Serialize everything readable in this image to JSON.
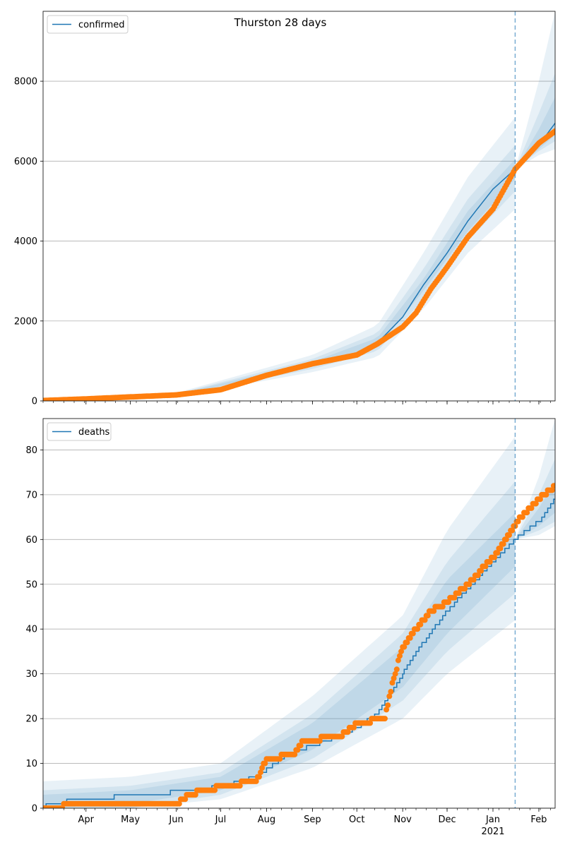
{
  "figure": {
    "title": "Thurston 28 days"
  },
  "chart_data": [
    {
      "type": "line",
      "legend": {
        "entries": [
          "confirmed"
        ],
        "placement": "top-left"
      },
      "x_range": [
        "2020-03-03",
        "2021-02-12"
      ],
      "y_range": [
        0,
        9750
      ],
      "yticks": [
        0,
        2000,
        4000,
        6000,
        8000
      ],
      "grid": "horizontal",
      "forecast_start": "2021-01-16",
      "series": [
        {
          "name": "confirmed",
          "kind": "model-line",
          "color": "#1f77b4",
          "points": [
            [
              "2020-03-03",
              0
            ],
            [
              "2020-04-01",
              40
            ],
            [
              "2020-05-01",
              90
            ],
            [
              "2020-06-01",
              150
            ],
            [
              "2020-06-20",
              220
            ],
            [
              "2020-07-01",
              270
            ],
            [
              "2020-07-15",
              400
            ],
            [
              "2020-08-01",
              620
            ],
            [
              "2020-08-15",
              780
            ],
            [
              "2020-09-01",
              920
            ],
            [
              "2020-09-15",
              1020
            ],
            [
              "2020-10-01",
              1180
            ],
            [
              "2020-10-15",
              1450
            ],
            [
              "2020-11-01",
              2100
            ],
            [
              "2020-11-15",
              2900
            ],
            [
              "2020-12-01",
              3700
            ],
            [
              "2020-12-15",
              4500
            ],
            [
              "2021-01-01",
              5300
            ],
            [
              "2021-01-16",
              5800
            ],
            [
              "2021-02-01",
              6400
            ],
            [
              "2021-02-12",
              6950
            ]
          ]
        },
        {
          "name": "observed",
          "kind": "points",
          "color": "#ff7f0e",
          "points": [
            [
              "2020-03-03",
              10
            ],
            [
              "2020-04-01",
              50
            ],
            [
              "2020-05-01",
              100
            ],
            [
              "2020-06-01",
              150
            ],
            [
              "2020-07-01",
              280
            ],
            [
              "2020-08-01",
              640
            ],
            [
              "2020-09-01",
              930
            ],
            [
              "2020-10-01",
              1150
            ],
            [
              "2020-10-15",
              1430
            ],
            [
              "2020-11-01",
              1850
            ],
            [
              "2020-11-10",
              2200
            ],
            [
              "2020-11-20",
              2800
            ],
            [
              "2020-12-01",
              3350
            ],
            [
              "2020-12-15",
              4100
            ],
            [
              "2021-01-01",
              4800
            ],
            [
              "2021-01-16",
              5800
            ],
            [
              "2021-02-01",
              6450
            ],
            [
              "2021-02-12",
              6750
            ]
          ]
        }
      ],
      "bands": [
        {
          "opacity": 0.1,
          "upper": [
            [
              "2020-03-03",
              0
            ],
            [
              "2020-06-01",
              200
            ],
            [
              "2020-09-01",
              1150
            ],
            [
              "2020-10-15",
              1900
            ],
            [
              "2020-11-15",
              3700
            ],
            [
              "2020-12-15",
              5600
            ],
            [
              "2021-01-16",
              7100
            ]
          ],
          "lower": [
            [
              "2020-03-03",
              0
            ],
            [
              "2020-06-01",
              110
            ],
            [
              "2020-09-01",
              720
            ],
            [
              "2020-10-15",
              1100
            ],
            [
              "2020-11-15",
              2300
            ],
            [
              "2020-12-15",
              3700
            ],
            [
              "2021-01-16",
              4800
            ]
          ]
        },
        {
          "opacity": 0.1,
          "upper": [
            [
              "2020-03-03",
              0
            ],
            [
              "2020-06-01",
              180
            ],
            [
              "2020-09-01",
              1050
            ],
            [
              "2020-10-15",
              1700
            ],
            [
              "2020-11-15",
              3300
            ],
            [
              "2020-12-15",
              5050
            ],
            [
              "2021-01-16",
              6400
            ]
          ],
          "lower": [
            [
              "2020-03-03",
              0
            ],
            [
              "2020-06-01",
              125
            ],
            [
              "2020-09-01",
              800
            ],
            [
              "2020-10-15",
              1250
            ],
            [
              "2020-11-15",
              2550
            ],
            [
              "2020-12-15",
              4000
            ],
            [
              "2021-01-16",
              5250
            ]
          ]
        },
        {
          "opacity": 0.1,
          "upper": [
            [
              "2020-03-03",
              0
            ],
            [
              "2020-06-01",
              165
            ],
            [
              "2020-09-01",
              980
            ],
            [
              "2020-10-15",
              1580
            ],
            [
              "2020-11-15",
              3050
            ],
            [
              "2020-12-15",
              4750
            ],
            [
              "2021-01-16",
              6050
            ]
          ],
          "lower": [
            [
              "2020-03-03",
              0
            ],
            [
              "2020-06-01",
              135
            ],
            [
              "2020-09-01",
              860
            ],
            [
              "2020-10-15",
              1330
            ],
            [
              "2020-11-15",
              2750
            ],
            [
              "2020-12-15",
              4250
            ],
            [
              "2021-01-16",
              5550
            ]
          ]
        },
        {
          "opacity": 0.1,
          "upper": [
            [
              "2021-01-16",
              5800
            ],
            [
              "2021-02-01",
              8000
            ],
            [
              "2021-02-12",
              9750
            ]
          ],
          "lower": [
            [
              "2021-01-16",
              5800
            ],
            [
              "2021-02-01",
              6150
            ],
            [
              "2021-02-12",
              6300
            ]
          ]
        },
        {
          "opacity": 0.1,
          "upper": [
            [
              "2021-01-16",
              5800
            ],
            [
              "2021-02-01",
              7200
            ],
            [
              "2021-02-12",
              8200
            ]
          ],
          "lower": [
            [
              "2021-01-16",
              5800
            ],
            [
              "2021-02-01",
              6250
            ],
            [
              "2021-02-12",
              6500
            ]
          ]
        },
        {
          "opacity": 0.1,
          "upper": [
            [
              "2021-01-16",
              5800
            ],
            [
              "2021-02-01",
              6800
            ],
            [
              "2021-02-12",
              7600
            ]
          ],
          "lower": [
            [
              "2021-01-16",
              5800
            ],
            [
              "2021-02-01",
              6300
            ],
            [
              "2021-02-12",
              6650
            ]
          ]
        }
      ]
    },
    {
      "type": "line",
      "legend": {
        "entries": [
          "deaths"
        ],
        "placement": "top-left"
      },
      "x_range": [
        "2020-03-03",
        "2021-02-12"
      ],
      "y_range": [
        0,
        87
      ],
      "yticks": [
        0,
        10,
        20,
        30,
        40,
        50,
        60,
        70,
        80
      ],
      "grid": "horizontal",
      "forecast_start": "2021-01-16",
      "series": [
        {
          "name": "deaths",
          "kind": "model-line",
          "color": "#1f77b4",
          "points": [
            [
              "2020-03-03",
              0
            ],
            [
              "2020-03-07",
              1
            ],
            [
              "2020-03-31",
              2
            ],
            [
              "2020-05-10",
              3
            ],
            [
              "2020-06-15",
              4
            ],
            [
              "2020-07-05",
              5
            ],
            [
              "2020-07-25",
              7
            ],
            [
              "2020-08-15",
              12
            ],
            [
              "2020-09-10",
              15
            ],
            [
              "2020-10-01",
              18
            ],
            [
              "2020-10-15",
              21
            ],
            [
              "2020-11-01",
              30
            ],
            [
              "2020-11-15",
              37
            ],
            [
              "2020-12-01",
              44
            ],
            [
              "2020-12-15",
              49
            ],
            [
              "2021-01-01",
              55
            ],
            [
              "2021-01-16",
              60
            ],
            [
              "2021-02-01",
              64
            ],
            [
              "2021-02-12",
              69
            ]
          ]
        },
        {
          "name": "observed",
          "kind": "points",
          "color": "#ff7f0e",
          "points": [
            [
              "2020-03-03",
              0
            ],
            [
              "2020-03-31",
              1
            ],
            [
              "2020-06-01",
              1
            ],
            [
              "2020-06-10",
              3
            ],
            [
              "2020-06-20",
              4
            ],
            [
              "2020-07-05",
              5
            ],
            [
              "2020-07-25",
              6
            ],
            [
              "2020-08-01",
              11
            ],
            [
              "2020-08-20",
              12
            ],
            [
              "2020-08-25",
              15
            ],
            [
              "2020-09-20",
              16
            ],
            [
              "2020-10-01",
              19
            ],
            [
              "2020-10-20",
              20
            ],
            [
              "2020-10-25",
              28
            ],
            [
              "2020-11-01",
              36
            ],
            [
              "2020-11-10",
              40
            ],
            [
              "2020-11-20",
              44
            ],
            [
              "2020-12-01",
              46
            ],
            [
              "2020-12-15",
              50
            ],
            [
              "2021-01-01",
              56
            ],
            [
              "2021-01-10",
              60
            ],
            [
              "2021-01-20",
              65
            ],
            [
              "2021-02-01",
              69
            ],
            [
              "2021-02-12",
              72
            ]
          ]
        }
      ],
      "bands": [
        {
          "opacity": 0.1,
          "upper": [
            [
              "2020-03-03",
              6
            ],
            [
              "2020-05-01",
              7
            ],
            [
              "2020-07-01",
              10
            ],
            [
              "2020-09-01",
              25
            ],
            [
              "2020-11-01",
              43
            ],
            [
              "2020-12-01",
              62
            ],
            [
              "2021-01-16",
              83
            ]
          ],
          "lower": [
            [
              "2020-03-03",
              0
            ],
            [
              "2020-05-01",
              0
            ],
            [
              "2020-07-01",
              2
            ],
            [
              "2020-09-01",
              9
            ],
            [
              "2020-11-01",
              20
            ],
            [
              "2020-12-01",
              30
            ],
            [
              "2021-01-16",
              42
            ]
          ]
        },
        {
          "opacity": 0.1,
          "upper": [
            [
              "2020-03-03",
              4
            ],
            [
              "2020-05-01",
              5
            ],
            [
              "2020-07-01",
              8
            ],
            [
              "2020-09-01",
              21
            ],
            [
              "2020-11-01",
              39
            ],
            [
              "2020-12-01",
              55
            ],
            [
              "2021-01-16",
              73
            ]
          ],
          "lower": [
            [
              "2020-03-03",
              0
            ],
            [
              "2020-05-01",
              0
            ],
            [
              "2020-07-01",
              3
            ],
            [
              "2020-09-01",
              11
            ],
            [
              "2020-11-01",
              24
            ],
            [
              "2020-12-01",
              35
            ],
            [
              "2021-01-16",
              48
            ]
          ]
        },
        {
          "opacity": 0.1,
          "upper": [
            [
              "2020-03-03",
              3
            ],
            [
              "2020-05-01",
              4
            ],
            [
              "2020-07-01",
              7
            ],
            [
              "2020-09-01",
              19
            ],
            [
              "2020-11-01",
              36
            ],
            [
              "2020-12-01",
              51
            ],
            [
              "2021-01-16",
              66
            ]
          ],
          "lower": [
            [
              "2020-03-03",
              0
            ],
            [
              "2020-05-01",
              1
            ],
            [
              "2020-07-01",
              4
            ],
            [
              "2020-09-01",
              13
            ],
            [
              "2020-11-01",
              27
            ],
            [
              "2020-12-01",
              39
            ],
            [
              "2021-01-16",
              54
            ]
          ]
        },
        {
          "opacity": 0.1,
          "upper": [
            [
              "2021-01-16",
              60
            ],
            [
              "2021-02-01",
              74
            ],
            [
              "2021-02-12",
              87
            ]
          ],
          "lower": [
            [
              "2021-01-16",
              60
            ],
            [
              "2021-02-01",
              61
            ],
            [
              "2021-02-12",
              63
            ]
          ]
        },
        {
          "opacity": 0.1,
          "upper": [
            [
              "2021-01-16",
              60
            ],
            [
              "2021-02-01",
              70
            ],
            [
              "2021-02-12",
              78
            ]
          ],
          "lower": [
            [
              "2021-01-16",
              60
            ],
            [
              "2021-02-01",
              62
            ],
            [
              "2021-02-12",
              64
            ]
          ]
        },
        {
          "opacity": 0.1,
          "upper": [
            [
              "2021-01-16",
              60
            ],
            [
              "2021-02-01",
              67
            ],
            [
              "2021-02-12",
              73
            ]
          ],
          "lower": [
            [
              "2021-01-16",
              60
            ],
            [
              "2021-02-01",
              63
            ],
            [
              "2021-02-12",
              66
            ]
          ]
        }
      ],
      "xticks": [
        {
          "date": "2020-04-01",
          "label": "Apr"
        },
        {
          "date": "2020-05-01",
          "label": "May"
        },
        {
          "date": "2020-06-01",
          "label": "Jun"
        },
        {
          "date": "2020-07-01",
          "label": "Jul"
        },
        {
          "date": "2020-08-01",
          "label": "Aug"
        },
        {
          "date": "2020-09-01",
          "label": "Sep"
        },
        {
          "date": "2020-10-01",
          "label": "Oct"
        },
        {
          "date": "2020-11-01",
          "label": "Nov"
        },
        {
          "date": "2020-12-01",
          "label": "Dec"
        },
        {
          "date": "2021-01-01",
          "label": "Jan"
        },
        {
          "date": "2021-02-01",
          "label": "Feb"
        }
      ],
      "year_label": "2021"
    }
  ]
}
